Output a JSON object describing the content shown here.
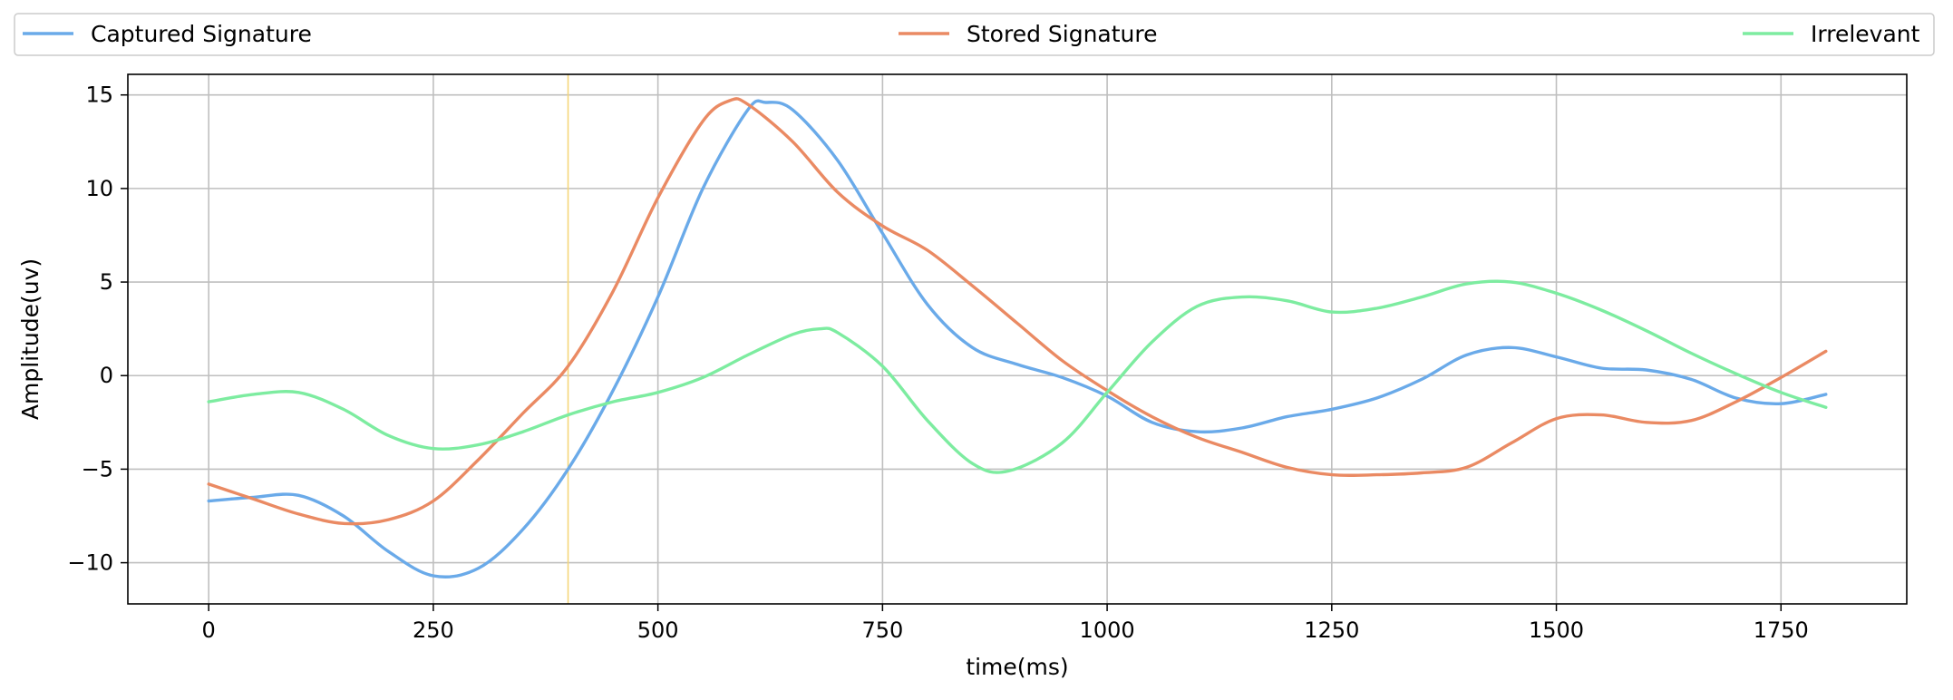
{
  "chart_data": {
    "type": "line",
    "xlabel": "time(ms)",
    "ylabel": "Amplitude(uv)",
    "xlim": [
      -90,
      1890
    ],
    "ylim": [
      -12.2,
      16.1
    ],
    "x_ticks": [
      0,
      250,
      500,
      750,
      1000,
      1250,
      1500,
      1750
    ],
    "y_ticks": [
      -10,
      -5,
      0,
      5,
      10,
      15
    ],
    "grid": true,
    "legend_placement": "top (above plot, spanning width)",
    "marker_line": {
      "x": 400,
      "color": "#f5d67a"
    },
    "series": [
      {
        "name": "Captured Signature",
        "color": "#6aaae9",
        "points": [
          [
            0,
            -6.7
          ],
          [
            50,
            -6.5
          ],
          [
            100,
            -6.4
          ],
          [
            150,
            -7.5
          ],
          [
            200,
            -9.4
          ],
          [
            250,
            -10.7
          ],
          [
            300,
            -10.3
          ],
          [
            350,
            -8.2
          ],
          [
            400,
            -5
          ],
          [
            450,
            -0.8
          ],
          [
            500,
            4.2
          ],
          [
            550,
            10
          ],
          [
            600,
            14.2
          ],
          [
            620,
            14.6
          ],
          [
            650,
            14.2
          ],
          [
            700,
            11.5
          ],
          [
            750,
            7.6
          ],
          [
            800,
            3.8
          ],
          [
            850,
            1.5
          ],
          [
            900,
            0.6
          ],
          [
            950,
            -0.1
          ],
          [
            1000,
            -1.1
          ],
          [
            1050,
            -2.5
          ],
          [
            1100,
            -3
          ],
          [
            1150,
            -2.8
          ],
          [
            1200,
            -2.2
          ],
          [
            1250,
            -1.8
          ],
          [
            1300,
            -1.2
          ],
          [
            1350,
            -0.2
          ],
          [
            1400,
            1.1
          ],
          [
            1450,
            1.5
          ],
          [
            1500,
            1.0
          ],
          [
            1550,
            0.4
          ],
          [
            1600,
            0.3
          ],
          [
            1650,
            -0.2
          ],
          [
            1700,
            -1.2
          ],
          [
            1750,
            -1.5
          ],
          [
            1800,
            -1.0
          ]
        ]
      },
      {
        "name": "Stored Signature",
        "color": "#ea8a63",
        "points": [
          [
            0,
            -5.8
          ],
          [
            50,
            -6.6
          ],
          [
            100,
            -7.4
          ],
          [
            150,
            -7.9
          ],
          [
            200,
            -7.7
          ],
          [
            250,
            -6.7
          ],
          [
            300,
            -4.5
          ],
          [
            350,
            -2
          ],
          [
            400,
            0.5
          ],
          [
            450,
            4.5
          ],
          [
            500,
            9.5
          ],
          [
            550,
            13.6
          ],
          [
            580,
            14.7
          ],
          [
            600,
            14.5
          ],
          [
            650,
            12.5
          ],
          [
            700,
            9.8
          ],
          [
            750,
            8.0
          ],
          [
            800,
            6.7
          ],
          [
            850,
            4.8
          ],
          [
            900,
            2.8
          ],
          [
            950,
            0.8
          ],
          [
            1000,
            -0.8
          ],
          [
            1050,
            -2.2
          ],
          [
            1100,
            -3.3
          ],
          [
            1150,
            -4.1
          ],
          [
            1200,
            -4.9
          ],
          [
            1250,
            -5.3
          ],
          [
            1300,
            -5.3
          ],
          [
            1350,
            -5.2
          ],
          [
            1400,
            -4.9
          ],
          [
            1450,
            -3.6
          ],
          [
            1500,
            -2.3
          ],
          [
            1550,
            -2.1
          ],
          [
            1600,
            -2.5
          ],
          [
            1650,
            -2.4
          ],
          [
            1700,
            -1.4
          ],
          [
            1750,
            -0.1
          ],
          [
            1800,
            1.3
          ]
        ]
      },
      {
        "name": "Irrelevant",
        "color": "#7deca0",
        "points": [
          [
            0,
            -1.4
          ],
          [
            50,
            -1
          ],
          [
            100,
            -0.9
          ],
          [
            150,
            -1.8
          ],
          [
            200,
            -3.2
          ],
          [
            250,
            -3.9
          ],
          [
            300,
            -3.7
          ],
          [
            350,
            -3.0
          ],
          [
            400,
            -2.1
          ],
          [
            450,
            -1.4
          ],
          [
            500,
            -0.9
          ],
          [
            550,
            -0.1
          ],
          [
            600,
            1.1
          ],
          [
            650,
            2.2
          ],
          [
            680,
            2.5
          ],
          [
            700,
            2.3
          ],
          [
            750,
            0.5
          ],
          [
            800,
            -2.4
          ],
          [
            850,
            -4.7
          ],
          [
            890,
            -5.1
          ],
          [
            950,
            -3.6
          ],
          [
            1000,
            -0.9
          ],
          [
            1050,
            1.8
          ],
          [
            1100,
            3.7
          ],
          [
            1150,
            4.2
          ],
          [
            1200,
            4.0
          ],
          [
            1250,
            3.4
          ],
          [
            1300,
            3.6
          ],
          [
            1350,
            4.2
          ],
          [
            1400,
            4.9
          ],
          [
            1450,
            5.0
          ],
          [
            1500,
            4.4
          ],
          [
            1550,
            3.5
          ],
          [
            1600,
            2.4
          ],
          [
            1650,
            1.2
          ],
          [
            1700,
            0.1
          ],
          [
            1750,
            -0.9
          ],
          [
            1800,
            -1.7
          ]
        ]
      }
    ]
  }
}
